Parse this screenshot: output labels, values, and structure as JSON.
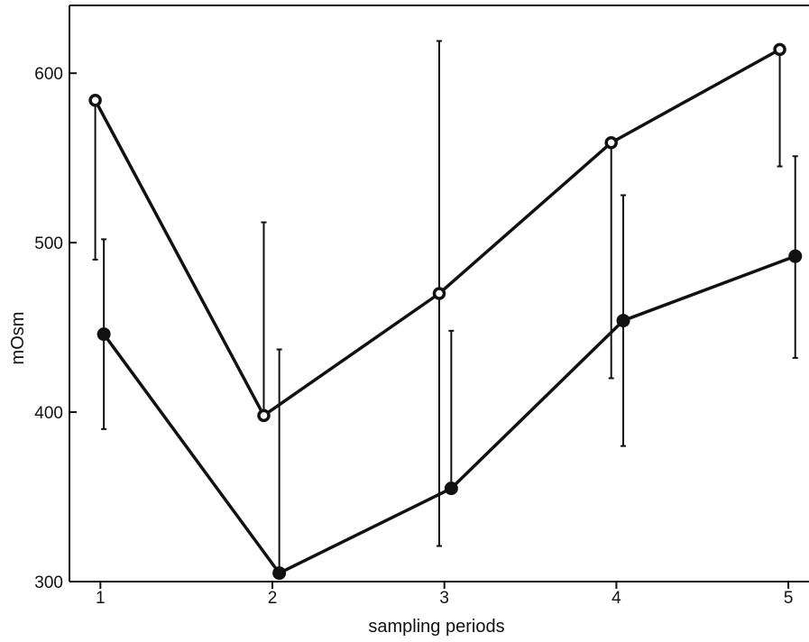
{
  "chart_data": {
    "type": "line",
    "xlabel": "sampling periods",
    "ylabel": "mOsm",
    "x": [
      1,
      2,
      3,
      4,
      5
    ],
    "xlim": [
      0.82,
      5.12
    ],
    "ylim": [
      300,
      640
    ],
    "yticks": [
      300,
      400,
      500,
      600
    ],
    "grid": false,
    "legend": "none",
    "series": [
      {
        "marker": "open-circle",
        "color": "#111111",
        "x": [
          0.97,
          1.95,
          2.97,
          3.97,
          4.95
        ],
        "values": [
          584,
          398,
          470,
          559,
          614
        ],
        "error_upper": [
          584,
          512,
          619,
          559,
          614
        ],
        "error_lower": [
          490,
          398,
          321,
          420,
          545
        ]
      },
      {
        "marker": "filled-circle",
        "color": "#111111",
        "x": [
          1.02,
          2.04,
          3.04,
          4.04,
          5.04
        ],
        "values": [
          446,
          305,
          355,
          454,
          492
        ],
        "error_upper": [
          502,
          437,
          448,
          528,
          551
        ],
        "error_lower": [
          390,
          305,
          355,
          380,
          432
        ]
      }
    ]
  }
}
